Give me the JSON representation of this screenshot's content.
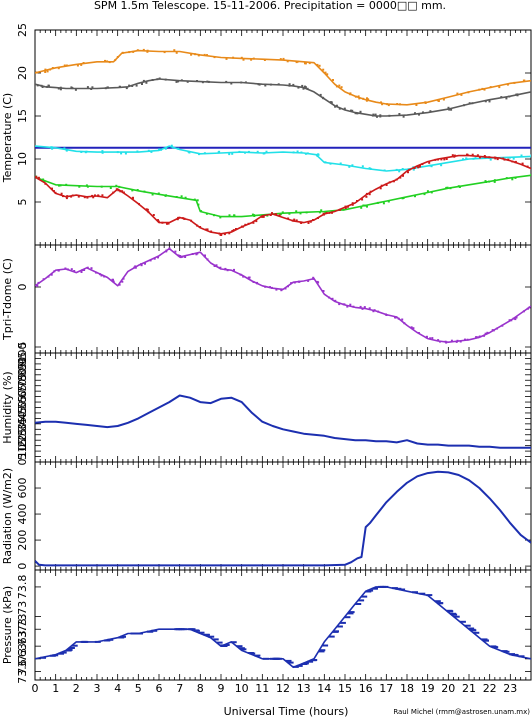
{
  "header": {
    "title": "SPM 1.5m Telescope. 15-11-2006. Precipitation = 0000□□ mm.",
    "credit": "Raul Michel (rmm@astrosen.unam.mx)"
  },
  "xaxis": {
    "label": "Universal Time (hours)",
    "ticks": [
      "0",
      "1",
      "2",
      "3",
      "4",
      "5",
      "6",
      "7",
      "8",
      "9",
      "10",
      "11",
      "12",
      "13",
      "14",
      "15",
      "16",
      "17",
      "18",
      "19",
      "20",
      "21",
      "22",
      "23"
    ],
    "range": [
      0,
      24
    ]
  },
  "chart_data": [
    {
      "type": "scatter",
      "ylabel": "Temperature (C)",
      "yticks": [
        "5",
        "10",
        "15",
        "20",
        "25"
      ],
      "ylim": [
        0,
        25
      ],
      "series": [
        {
          "color": "#e88a1a",
          "x": [
            0,
            0.5,
            1,
            2,
            3,
            3.8,
            4.2,
            5,
            6,
            7,
            8,
            9,
            10,
            11,
            12,
            13,
            13.5,
            14,
            14.5,
            15,
            15.5,
            16,
            16.5,
            17,
            18,
            19,
            20,
            21,
            22,
            23,
            24
          ],
          "y": [
            20,
            20.3,
            20.6,
            21,
            21.3,
            21.3,
            22.3,
            22.6,
            22.5,
            22.5,
            22.1,
            21.8,
            21.7,
            21.6,
            21.5,
            21.3,
            21.2,
            20,
            18.7,
            17.8,
            17.3,
            16.9,
            16.6,
            16.4,
            16.3,
            16.6,
            17.2,
            17.8,
            18.3,
            18.8,
            19.1
          ]
        },
        {
          "color": "#5a5a5a",
          "x": [
            0,
            0.5,
            1,
            1.5,
            2,
            3,
            4,
            4.5,
            5,
            5.5,
            6,
            7,
            8,
            9,
            10,
            11,
            12,
            12.5,
            13,
            13.5,
            14,
            14.5,
            15,
            15.5,
            16,
            16.5,
            17,
            18,
            19,
            20,
            21,
            22,
            23,
            24
          ],
          "y": [
            18.7,
            18.4,
            18.3,
            18.2,
            18.2,
            18.2,
            18.3,
            18.4,
            18.8,
            19.1,
            19.3,
            19.1,
            19.0,
            18.9,
            18.9,
            18.7,
            18.6,
            18.5,
            18.3,
            17.8,
            17.0,
            16.2,
            15.7,
            15.4,
            15.2,
            15.0,
            15.0,
            15.1,
            15.4,
            15.8,
            16.4,
            16.9,
            17.3,
            17.8
          ]
        },
        {
          "color": "#2222bb",
          "x": [
            0,
            24
          ],
          "y": [
            11.3,
            11.3
          ]
        },
        {
          "color": "#22e0e8",
          "x": [
            0,
            1,
            2,
            3,
            4,
            5,
            6,
            6.5,
            7,
            8,
            9,
            10,
            11,
            12,
            13,
            13.6,
            14,
            15,
            16,
            17,
            18,
            19,
            20,
            21,
            22,
            23,
            24
          ],
          "y": [
            11.5,
            11.3,
            10.9,
            10.8,
            10.8,
            10.8,
            11.0,
            11.5,
            11.1,
            10.6,
            10.7,
            10.8,
            10.7,
            10.8,
            10.7,
            10.5,
            9.6,
            9.3,
            8.9,
            8.6,
            8.8,
            9.2,
            9.6,
            10.0,
            10.1,
            10.2,
            10.3
          ]
        },
        {
          "color": "#22d022",
          "x": [
            0,
            1,
            2,
            3,
            4,
            5,
            6,
            7,
            7.8,
            8,
            9,
            10,
            11,
            12,
            13,
            14,
            15,
            16,
            17,
            18,
            19,
            20,
            21,
            22,
            23,
            24
          ],
          "y": [
            7.9,
            7.0,
            6.9,
            6.8,
            6.8,
            6.3,
            5.9,
            5.5,
            5.2,
            3.9,
            3.3,
            3.3,
            3.5,
            3.7,
            3.8,
            3.9,
            4.1,
            4.6,
            5.1,
            5.6,
            6.1,
            6.6,
            7.0,
            7.4,
            7.8,
            8.1
          ]
        },
        {
          "color": "#cc1a1a",
          "x": [
            0,
            0.5,
            1,
            1.5,
            2,
            2.5,
            3,
            3.5,
            4,
            4.5,
            5,
            5.5,
            6,
            6.5,
            7,
            7.5,
            8,
            8.5,
            9,
            9.5,
            10,
            10.5,
            11,
            11.5,
            12,
            12.5,
            13,
            13.5,
            14,
            14.5,
            15,
            15.5,
            16,
            16.5,
            17,
            17.5,
            18,
            18.5,
            19,
            19.5,
            20,
            20.5,
            21,
            21.5,
            22,
            22.5,
            23,
            23.5,
            24
          ],
          "y": [
            7.9,
            7.2,
            6.0,
            5.6,
            5.8,
            5.6,
            5.7,
            5.5,
            6.5,
            5.7,
            4.8,
            3.8,
            2.6,
            2.6,
            3.2,
            2.9,
            2.0,
            1.5,
            1.3,
            1.5,
            2.1,
            2.6,
            3.4,
            3.6,
            3.2,
            2.8,
            2.6,
            2.9,
            3.6,
            3.9,
            4.4,
            4.9,
            5.8,
            6.5,
            7.1,
            7.6,
            8.6,
            9.2,
            9.7,
            10.0,
            10.2,
            10.4,
            10.4,
            10.3,
            10.2,
            10.1,
            9.8,
            9.4,
            8.9
          ]
        }
      ]
    },
    {
      "type": "scatter",
      "ylabel": "Tpri-Tdome (C)",
      "yticks": [
        "-5",
        "0"
      ],
      "ylim": [
        -5.5,
        3.5
      ],
      "series": [
        {
          "color": "#9933cc",
          "x": [
            0,
            0.5,
            1,
            1.5,
            2,
            2.5,
            3,
            3.5,
            4,
            4.5,
            5,
            5.5,
            6,
            6.5,
            7,
            7.5,
            8,
            8.5,
            9,
            9.5,
            10,
            10.5,
            11,
            11.5,
            12,
            12.5,
            13,
            13.5,
            14,
            14.5,
            15,
            15.5,
            16,
            16.5,
            17,
            17.5,
            18,
            18.5,
            19,
            19.5,
            20,
            20.5,
            21,
            21.5,
            22,
            22.5,
            23,
            23.5,
            24
          ],
          "y": [
            0.1,
            0.7,
            1.4,
            1.5,
            1.2,
            1.6,
            1.2,
            0.8,
            0.1,
            1.3,
            1.8,
            2.2,
            2.6,
            3.2,
            2.5,
            2.7,
            2.9,
            2.0,
            1.5,
            1.4,
            1.0,
            0.5,
            0.1,
            -0.1,
            -0.2,
            0.4,
            0.5,
            0.7,
            -0.6,
            -1.2,
            -1.5,
            -1.7,
            -1.8,
            -2.0,
            -2.3,
            -2.5,
            -3.2,
            -3.8,
            -4.3,
            -4.5,
            -4.6,
            -4.5,
            -4.4,
            -4.2,
            -3.8,
            -3.3,
            -2.8,
            -2.2,
            -1.6
          ]
        }
      ]
    },
    {
      "type": "line",
      "ylabel": "Humidity (%)",
      "yticks": [
        "0",
        "5",
        "10",
        "15",
        "20",
        "25",
        "30",
        "35",
        "40",
        "45",
        "50",
        "55",
        "60",
        "65",
        "70",
        "75",
        "80",
        "85",
        "90",
        "95",
        "100"
      ],
      "ylim": [
        0,
        100
      ],
      "series": [
        {
          "color": "#1c2fb0",
          "x": [
            0,
            0.5,
            1,
            1.5,
            2,
            2.5,
            3,
            3.5,
            4,
            4.5,
            5,
            5.5,
            6,
            6.5,
            7,
            7.5,
            8,
            8.5,
            9,
            9.5,
            10,
            10.5,
            11,
            11.5,
            12,
            12.5,
            13,
            13.5,
            14,
            14.5,
            15,
            15.5,
            16,
            16.5,
            17,
            17.5,
            18,
            18.5,
            19,
            19.5,
            20,
            20.5,
            21,
            21.5,
            22,
            22.5,
            23,
            23.5,
            24
          ],
          "y": [
            36,
            37,
            37,
            36,
            35,
            34,
            33,
            32,
            33,
            36,
            40,
            45,
            50,
            55,
            61,
            59,
            55,
            54,
            58,
            59,
            55,
            45,
            37,
            33,
            30,
            28,
            26,
            25,
            24,
            22,
            21,
            20,
            20,
            19,
            19,
            18,
            20,
            17,
            16,
            16,
            15,
            15,
            15,
            14,
            14,
            13,
            13,
            13,
            13
          ]
        }
      ]
    },
    {
      "type": "line",
      "ylabel": "Radiation (W/m2)",
      "yticks": [
        "0",
        "200",
        "400",
        "600"
      ],
      "ylim": [
        -30,
        800
      ],
      "series": [
        {
          "color": "#1c2fb0",
          "x": [
            0,
            0.2,
            0.5,
            1,
            2,
            3,
            4,
            5,
            6,
            7,
            8,
            9,
            10,
            11,
            12,
            13,
            14,
            15,
            15.3,
            15.6,
            15.8,
            16,
            16.2,
            16.5,
            17,
            17.5,
            18,
            18.5,
            19,
            19.5,
            20,
            20.5,
            21,
            21.5,
            22,
            22.5,
            23,
            23.5,
            24
          ],
          "y": [
            40,
            10,
            5,
            5,
            5,
            5,
            5,
            5,
            5,
            5,
            5,
            5,
            5,
            5,
            5,
            5,
            5,
            10,
            30,
            60,
            70,
            300,
            330,
            390,
            490,
            570,
            640,
            690,
            715,
            725,
            720,
            700,
            660,
            600,
            520,
            430,
            330,
            240,
            180
          ]
        }
      ]
    },
    {
      "type": "scatter",
      "ylabel": "Pressure (kPa)",
      "yticks": [
        "73.6",
        "73.63",
        "73.63",
        "73.73",
        "73.73",
        "73.8"
      ],
      "ylim": [
        73.58,
        73.84
      ],
      "series": [
        {
          "color": "#1c2fb0",
          "x": [
            0,
            1,
            1.5,
            2,
            3,
            4,
            4.5,
            5,
            6,
            7,
            7.5,
            8,
            8.5,
            9,
            9.5,
            10,
            11,
            11.5,
            12,
            12.5,
            13,
            13.5,
            14,
            14.5,
            15,
            15.5,
            16,
            16.5,
            17,
            18,
            19,
            19.5,
            20,
            20.5,
            21,
            21.5,
            22,
            22.5,
            23,
            24
          ],
          "y": [
            73.63,
            73.64,
            73.65,
            73.67,
            73.67,
            73.68,
            73.69,
            73.69,
            73.7,
            73.7,
            73.7,
            73.69,
            73.68,
            73.66,
            73.67,
            73.65,
            73.63,
            73.63,
            73.63,
            73.61,
            73.62,
            73.63,
            73.67,
            73.7,
            73.73,
            73.76,
            73.79,
            73.8,
            73.8,
            73.79,
            73.78,
            73.76,
            73.74,
            73.72,
            73.7,
            73.68,
            73.66,
            73.65,
            73.64,
            73.63
          ]
        }
      ]
    }
  ]
}
